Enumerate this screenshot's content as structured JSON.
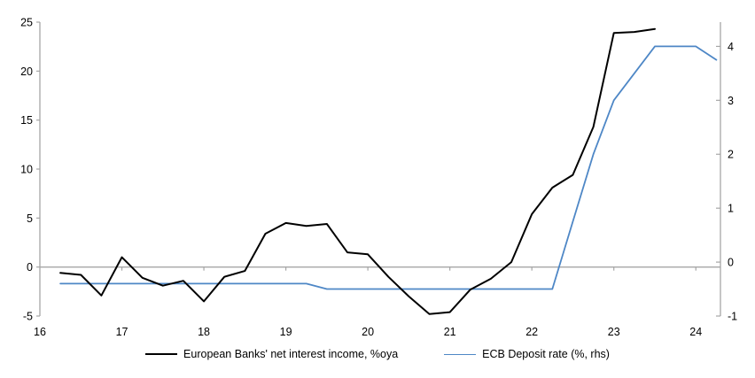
{
  "chart_data": {
    "type": "line",
    "title": "",
    "background_color": "#ffffff",
    "axis_color": "#a6a6a6",
    "grid": "zero-line-only",
    "x_axis": {
      "tick_labels": [
        "16",
        "17",
        "18",
        "19",
        "20",
        "21",
        "22",
        "23",
        "24"
      ],
      "tick_values": [
        16,
        17,
        18,
        19,
        20,
        21,
        22,
        23,
        24
      ],
      "range": [
        16,
        24.3
      ]
    },
    "left_axis": {
      "tick_labels": [
        "25",
        "20",
        "15",
        "10",
        "5",
        "0",
        "-5"
      ],
      "tick_values": [
        25,
        20,
        15,
        10,
        5,
        0,
        -5
      ],
      "range": [
        -5,
        25
      ]
    },
    "right_axis": {
      "tick_labels": [
        "4",
        "3",
        "2",
        "1",
        "0",
        "-1"
      ],
      "tick_values": [
        4,
        3,
        2,
        1,
        0,
        -1
      ],
      "range": [
        -1,
        4.45
      ]
    },
    "series": [
      {
        "name": "European Banks' net interest income, %oya",
        "axis": "left",
        "color": "#000000",
        "width": 2,
        "x_start": 16.25,
        "x_step": 0.25,
        "values": [
          -0.6,
          -0.8,
          -2.9,
          1.0,
          -1.1,
          -1.9,
          -1.4,
          -3.5,
          -1.0,
          -0.4,
          3.4,
          4.5,
          4.2,
          4.4,
          1.5,
          1.3,
          -1.0,
          -3.0,
          -4.8,
          -4.6,
          -2.3,
          -1.2,
          0.5,
          5.4,
          8.1,
          9.4,
          14.3,
          23.9,
          24.0,
          24.3
        ]
      },
      {
        "name": "ECB Deposit rate (%, rhs)",
        "axis": "right",
        "color": "#4e87c6",
        "width": 1.8,
        "x_start": 16.25,
        "x_step": 0.25,
        "values": [
          -0.4,
          -0.4,
          -0.4,
          -0.4,
          -0.4,
          -0.4,
          -0.4,
          -0.4,
          -0.4,
          -0.4,
          -0.4,
          -0.4,
          -0.4,
          -0.5,
          -0.5,
          -0.5,
          -0.5,
          -0.5,
          -0.5,
          -0.5,
          -0.5,
          -0.5,
          -0.5,
          -0.5,
          -0.5,
          0.75,
          2.0,
          3.0,
          3.5,
          4.0,
          4.0,
          4.0,
          3.75
        ]
      }
    ],
    "legend": {
      "position": "bottom"
    }
  }
}
